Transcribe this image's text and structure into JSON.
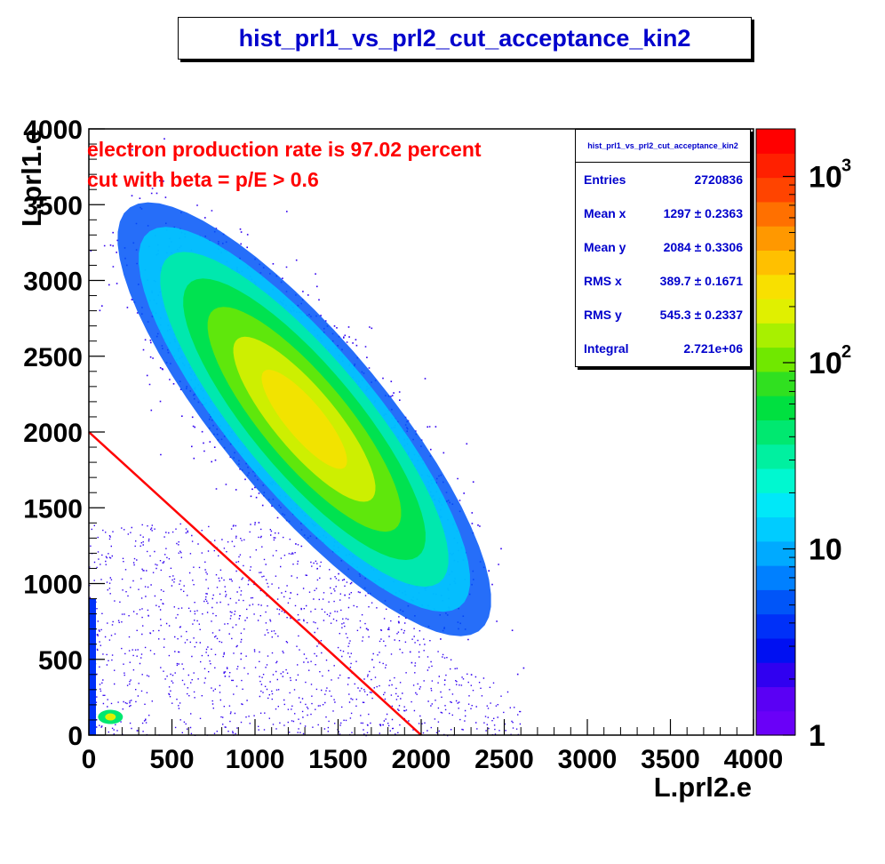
{
  "title": "hist_prl1_vs_prl2_cut_acceptance_kin2",
  "annotations": [
    "electron production rate is 97.02 percent",
    "cut with beta = p/E > 0.6"
  ],
  "stats": {
    "name": "hist_prl1_vs_prl2_cut_acceptance_kin2",
    "rows": [
      {
        "label": "Entries",
        "value": "2720836"
      },
      {
        "label": "Mean x",
        "value": "1297 ± 0.2363"
      },
      {
        "label": "Mean y",
        "value": "2084 ± 0.3306"
      },
      {
        "label": "RMS x",
        "value": "389.7 ± 0.1671"
      },
      {
        "label": "RMS y",
        "value": "545.3 ± 0.2337"
      },
      {
        "label": "Integral",
        "value": "2.721e+06"
      }
    ]
  },
  "colors": {
    "title_text": "#0000cc",
    "annotation": "#ff0000",
    "cut_line": "#ff0000"
  },
  "chart_data": {
    "type": "heatmap",
    "xlabel": "L.prl2.e",
    "ylabel": "L.prl1.e",
    "xlim": [
      0,
      4000
    ],
    "ylim": [
      0,
      4000
    ],
    "x_ticks": [
      "0",
      "500",
      "1000",
      "1500",
      "2000",
      "2500",
      "3000",
      "3500",
      "4000"
    ],
    "y_ticks": [
      "0",
      "500",
      "1000",
      "1500",
      "2000",
      "2500",
      "3000",
      "3500",
      "4000"
    ],
    "z_scale": "log",
    "z_range": [
      1,
      1800
    ],
    "z_tick_labels": [
      {
        "value": 1,
        "base": "1",
        "exp": ""
      },
      {
        "value": 10,
        "base": "10",
        "exp": ""
      },
      {
        "value": 100,
        "base": "10",
        "exp": "2"
      },
      {
        "value": 1000,
        "base": "10",
        "exp": "3"
      }
    ],
    "cut_line": {
      "x": [
        0,
        2000
      ],
      "y": [
        2000,
        0
      ]
    },
    "main_blob": {
      "center": [
        1297,
        2084
      ],
      "rms": [
        389.7,
        545.3
      ],
      "direction": [
        0.6,
        -0.8
      ]
    },
    "grid": false,
    "legend": "none"
  }
}
